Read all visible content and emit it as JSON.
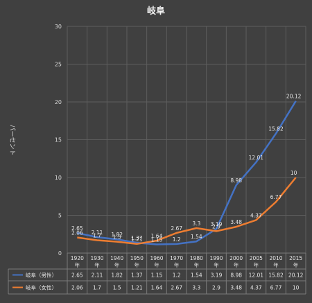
{
  "chart_data": {
    "type": "line",
    "title": "岐阜",
    "ylabel": "パーセント",
    "xlabel": "",
    "ylim": [
      0,
      30
    ],
    "yticks": [
      0,
      5,
      10,
      15,
      20,
      25,
      30
    ],
    "grid": true,
    "legend": "table-bottom",
    "categories": [
      [
        "1920",
        "年"
      ],
      [
        "1930",
        "年"
      ],
      [
        "1940",
        "年"
      ],
      [
        "1950",
        "年"
      ],
      [
        "1960",
        "年"
      ],
      [
        "1970",
        "年"
      ],
      [
        "1980",
        "年"
      ],
      [
        "1990",
        "年"
      ],
      [
        "2000",
        "年"
      ],
      [
        "2005",
        "年"
      ],
      [
        "2010",
        "年"
      ],
      [
        "2015",
        "年"
      ]
    ],
    "series": [
      {
        "name": "岐阜（男性）",
        "color": "#4472c4",
        "values": [
          2.65,
          2.11,
          1.82,
          1.37,
          1.15,
          1.2,
          1.54,
          3.19,
          8.98,
          12.01,
          15.82,
          20.12
        ],
        "labels": [
          "2.65",
          "2.11",
          "1.82",
          "1.37",
          "1.15",
          "1.2",
          "1.54",
          "3.19",
          "8.98",
          "12.01",
          "15.82",
          "20.12"
        ]
      },
      {
        "name": "岐阜（女性）",
        "color": "#ed7d31",
        "values": [
          2.06,
          1.7,
          1.5,
          1.21,
          1.64,
          2.67,
          3.3,
          2.9,
          3.48,
          4.37,
          6.77,
          10
        ],
        "labels": [
          "2.06",
          "1.7",
          "1.5",
          "1.21",
          "1.64",
          "2.67",
          "3.3",
          "2.9",
          "3.48",
          "4.37",
          "6.77",
          "10"
        ]
      }
    ]
  }
}
